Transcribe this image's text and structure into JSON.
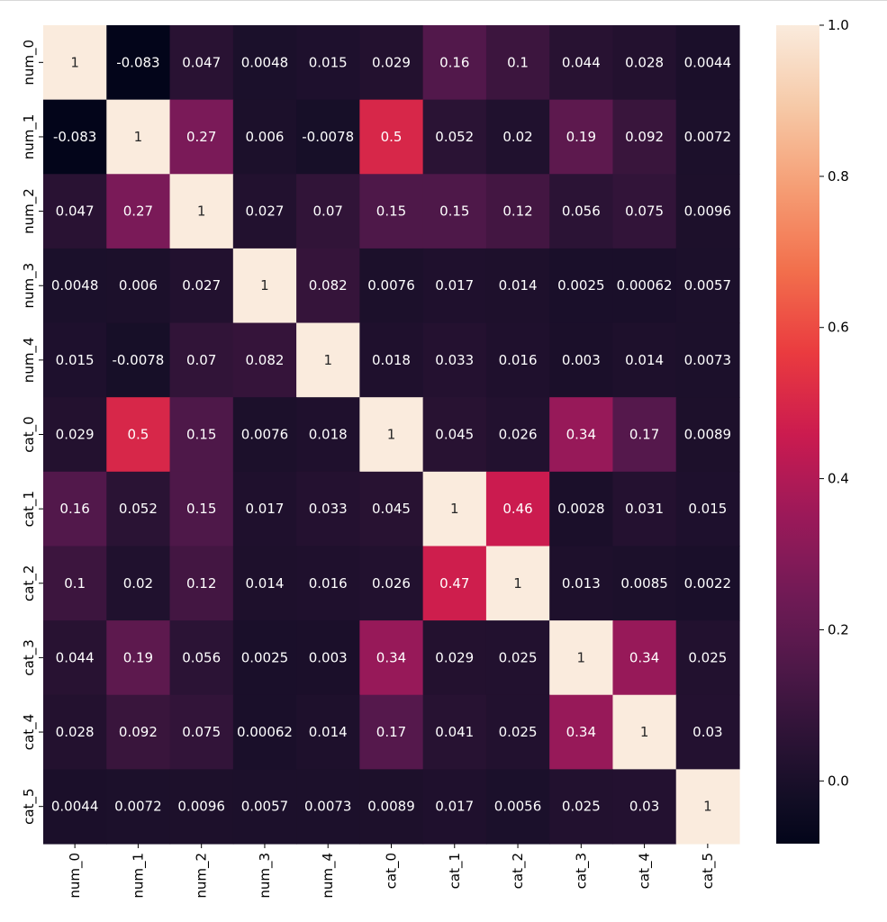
{
  "chart_data": {
    "type": "heatmap",
    "title": "",
    "xlabel": "",
    "ylabel": "",
    "row_labels": [
      "num_0",
      "num_1",
      "num_2",
      "num_3",
      "num_4",
      "cat_0",
      "cat_1",
      "cat_2",
      "cat_3",
      "cat_4",
      "cat_5"
    ],
    "col_labels": [
      "num_0",
      "num_1",
      "num_2",
      "num_3",
      "num_4",
      "cat_0",
      "cat_1",
      "cat_2",
      "cat_3",
      "cat_4",
      "cat_5"
    ],
    "values": [
      [
        1,
        -0.083,
        0.047,
        0.0048,
        0.015,
        0.029,
        0.16,
        0.1,
        0.044,
        0.028,
        0.0044
      ],
      [
        -0.083,
        1,
        0.27,
        0.006,
        -0.0078,
        0.5,
        0.052,
        0.02,
        0.19,
        0.092,
        0.0072
      ],
      [
        0.047,
        0.27,
        1,
        0.027,
        0.07,
        0.15,
        0.15,
        0.12,
        0.056,
        0.075,
        0.0096
      ],
      [
        0.0048,
        0.006,
        0.027,
        1,
        0.082,
        0.0076,
        0.017,
        0.014,
        0.0025,
        0.00062,
        0.0057
      ],
      [
        0.015,
        -0.0078,
        0.07,
        0.082,
        1,
        0.018,
        0.033,
        0.016,
        0.003,
        0.014,
        0.0073
      ],
      [
        0.029,
        0.5,
        0.15,
        0.0076,
        0.018,
        1,
        0.045,
        0.026,
        0.34,
        0.17,
        0.0089
      ],
      [
        0.16,
        0.052,
        0.15,
        0.017,
        0.033,
        0.045,
        1,
        0.46,
        0.0028,
        0.031,
        0.015
      ],
      [
        0.1,
        0.02,
        0.12,
        0.014,
        0.016,
        0.026,
        0.47,
        1,
        0.013,
        0.0085,
        0.0022
      ],
      [
        0.044,
        0.19,
        0.056,
        0.0025,
        0.003,
        0.34,
        0.029,
        0.025,
        1,
        0.34,
        0.025
      ],
      [
        0.028,
        0.092,
        0.075,
        0.00062,
        0.014,
        0.17,
        0.041,
        0.025,
        0.34,
        1,
        0.03
      ],
      [
        0.0044,
        0.0072,
        0.0096,
        0.0057,
        0.0073,
        0.0089,
        0.017,
        0.0056,
        0.025,
        0.03,
        1
      ]
    ],
    "cell_labels": [
      [
        "1",
        "-0.083",
        "0.047",
        "0.0048",
        "0.015",
        "0.029",
        "0.16",
        "0.1",
        "0.044",
        "0.028",
        "0.0044"
      ],
      [
        "-0.083",
        "1",
        "0.27",
        "0.006",
        "-0.0078",
        "0.5",
        "0.052",
        "0.02",
        "0.19",
        "0.092",
        "0.0072"
      ],
      [
        "0.047",
        "0.27",
        "1",
        "0.027",
        "0.07",
        "0.15",
        "0.15",
        "0.12",
        "0.056",
        "0.075",
        "0.0096"
      ],
      [
        "0.0048",
        "0.006",
        "0.027",
        "1",
        "0.082",
        "0.0076",
        "0.017",
        "0.014",
        "0.0025",
        "0.00062",
        "0.0057"
      ],
      [
        "0.015",
        "-0.0078",
        "0.07",
        "0.082",
        "1",
        "0.018",
        "0.033",
        "0.016",
        "0.003",
        "0.014",
        "0.0073"
      ],
      [
        "0.029",
        "0.5",
        "0.15",
        "0.0076",
        "0.018",
        "1",
        "0.045",
        "0.026",
        "0.34",
        "0.17",
        "0.0089"
      ],
      [
        "0.16",
        "0.052",
        "0.15",
        "0.017",
        "0.033",
        "0.045",
        "1",
        "0.46",
        "0.0028",
        "0.031",
        "0.015"
      ],
      [
        "0.1",
        "0.02",
        "0.12",
        "0.014",
        "0.016",
        "0.026",
        "0.47",
        "1",
        "0.013",
        "0.0085",
        "0.0022"
      ],
      [
        "0.044",
        "0.19",
        "0.056",
        "0.0025",
        "0.003",
        "0.34",
        "0.029",
        "0.025",
        "1",
        "0.34",
        "0.025"
      ],
      [
        "0.028",
        "0.092",
        "0.075",
        "0.00062",
        "0.014",
        "0.17",
        "0.041",
        "0.025",
        "0.34",
        "1",
        "0.03"
      ],
      [
        "0.0044",
        "0.0072",
        "0.0096",
        "0.0057",
        "0.0073",
        "0.0089",
        "0.017",
        "0.0056",
        "0.025",
        "0.03",
        "1"
      ]
    ],
    "colorbar": {
      "vmin": -0.083,
      "vmax": 1.0,
      "ticks": [
        0.0,
        0.2,
        0.4,
        0.6,
        0.8,
        1.0
      ],
      "tick_labels": [
        "0.0",
        "0.2",
        "0.4",
        "0.6",
        "0.8",
        "1.0"
      ]
    },
    "colormap": "rocket",
    "grid": false,
    "legend": "colorbar-right"
  }
}
